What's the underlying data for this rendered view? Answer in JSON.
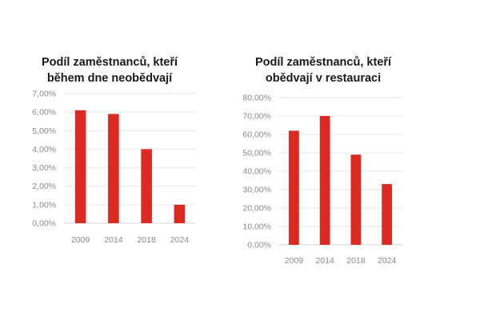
{
  "colors": {
    "bar": "#dc2a22",
    "grid": "#e6e6e6",
    "tick": "#8a8a8a",
    "title": "#1a1a1a"
  },
  "chart_data": [
    {
      "type": "bar",
      "title": "Podíl zaměstnanců, kteří během dne neobědvají",
      "title_lines": [
        "Podíl zaměstnanců, kteří",
        "během dne neobědvají"
      ],
      "categories": [
        "2009",
        "2014",
        "2018",
        "2024"
      ],
      "values": [
        6.1,
        5.9,
        4.0,
        1.0
      ],
      "yticks": [
        "0,00%",
        "1,00%",
        "2,00%",
        "3,00%",
        "4,00%",
        "5,00%",
        "6,00%",
        "7,00%"
      ],
      "ylim": [
        0,
        7
      ],
      "xlabel": "",
      "ylabel": "",
      "grid": true,
      "legend": "none"
    },
    {
      "type": "bar",
      "title": "Podíl zaměstnanců, kteří obědvají v restauraci",
      "title_lines": [
        "Podíl zaměstnanců, kteří",
        "obědvají v restauraci"
      ],
      "categories": [
        "2009",
        "2014",
        "2018",
        "2024"
      ],
      "values": [
        62,
        70,
        49,
        33
      ],
      "yticks": [
        "0,00%",
        "10,00%",
        "20,00%",
        "30,00%",
        "40,00%",
        "50,00%",
        "60,00%",
        "70,00%",
        "80,00%"
      ],
      "ylim": [
        0,
        80
      ],
      "xlabel": "",
      "ylabel": "",
      "grid": true,
      "legend": "none"
    }
  ]
}
